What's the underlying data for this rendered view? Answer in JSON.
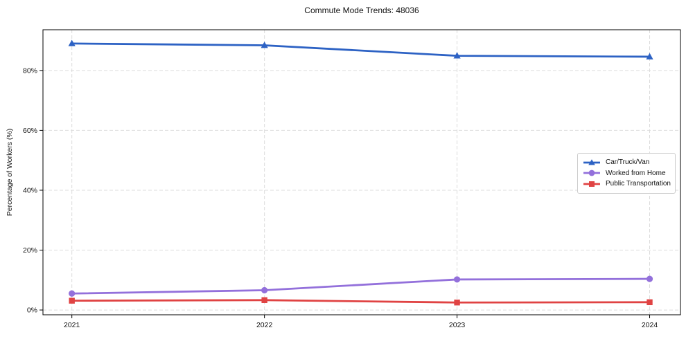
{
  "chart_data": {
    "type": "line",
    "title": "Commute Mode Trends: 48036",
    "xlabel": "",
    "ylabel": "Percentage of Workers (%)",
    "x": [
      2021,
      2022,
      2023,
      2024
    ],
    "x_tick_labels": [
      "2021",
      "2022",
      "2023",
      "2024"
    ],
    "y_ticks": [
      0,
      20,
      40,
      60,
      80
    ],
    "y_tick_labels": [
      "0%",
      "20%",
      "40%",
      "60%",
      "80%"
    ],
    "xlim": [
      2020.85,
      2024.16
    ],
    "ylim": [
      -1.6,
      93.6
    ],
    "grid": true,
    "grid_style": "dashed",
    "legend_position": "right-center",
    "series": [
      {
        "name": "Car/Truck/Van",
        "color": "#2d62c4",
        "marker": "triangle",
        "values": [
          89.0,
          88.4,
          84.9,
          84.6
        ]
      },
      {
        "name": "Worked from Home",
        "color": "#9370db",
        "marker": "circle",
        "values": [
          5.5,
          6.6,
          10.2,
          10.4
        ]
      },
      {
        "name": "Public Transportation",
        "color": "#e04343",
        "marker": "square",
        "values": [
          3.1,
          3.3,
          2.5,
          2.6
        ]
      }
    ]
  },
  "colors": {
    "grid": "#dcdcdc",
    "spine": "#000000",
    "text": "#111111",
    "background": "#ffffff"
  }
}
